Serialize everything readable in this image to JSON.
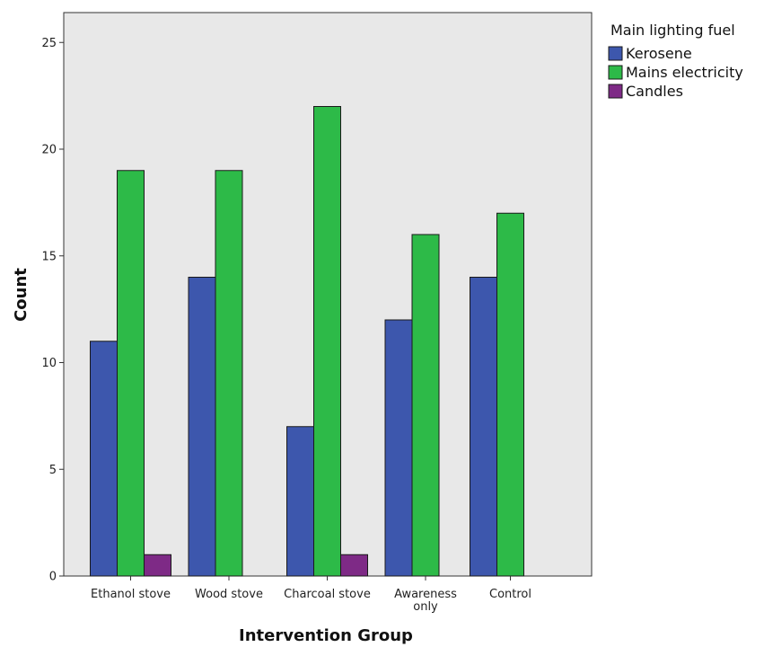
{
  "chart_data": {
    "type": "bar",
    "title": "",
    "xlabel": "Intervention Group",
    "ylabel": "Count",
    "ylim": [
      0,
      27
    ],
    "yticks": [
      0,
      5,
      10,
      15,
      20,
      25
    ],
    "grid": false,
    "legend_position": "top-right outside",
    "legend_title": "Main lighting fuel",
    "categories": [
      [
        "Ethanol stove"
      ],
      [
        "Wood stove"
      ],
      [
        "Charcoal stove"
      ],
      [
        "Awareness",
        "only"
      ],
      [
        "Control"
      ]
    ],
    "series": [
      {
        "name": "Kerosene",
        "color": "#3d57ad",
        "values": [
          11,
          14,
          7,
          12,
          14
        ]
      },
      {
        "name": "Mains electricity",
        "color": "#2dba48",
        "values": [
          19,
          19,
          22,
          16,
          17
        ]
      },
      {
        "name": "Candles",
        "color": "#7e2a86",
        "values": [
          1,
          0,
          1,
          0,
          0
        ]
      }
    ],
    "plot_background": "#e8e8e8"
  }
}
